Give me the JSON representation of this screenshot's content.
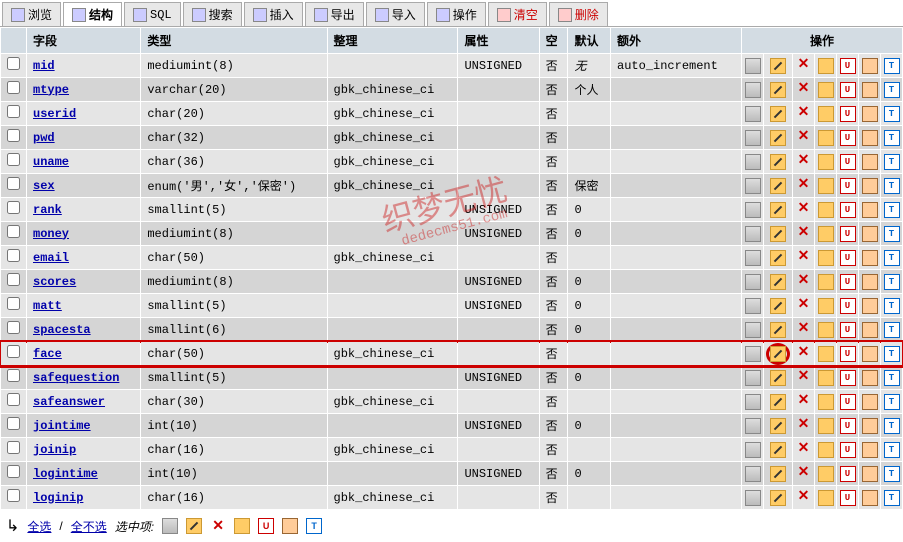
{
  "tabs": [
    {
      "label": "浏览",
      "active": false,
      "danger": false
    },
    {
      "label": "结构",
      "active": true,
      "danger": false
    },
    {
      "label": "SQL",
      "active": false,
      "danger": false
    },
    {
      "label": "搜索",
      "active": false,
      "danger": false
    },
    {
      "label": "插入",
      "active": false,
      "danger": false
    },
    {
      "label": "导出",
      "active": false,
      "danger": false
    },
    {
      "label": "导入",
      "active": false,
      "danger": false
    },
    {
      "label": "操作",
      "active": false,
      "danger": false
    },
    {
      "label": "清空",
      "active": false,
      "danger": true
    },
    {
      "label": "删除",
      "active": false,
      "danger": true
    }
  ],
  "headers": {
    "field": "字段",
    "type": "类型",
    "collation": "整理",
    "attributes": "属性",
    "null": "空",
    "default": "默认",
    "extra": "额外",
    "action": "操作"
  },
  "rows": [
    {
      "field": "mid",
      "type": "mediumint(8)",
      "collation": "",
      "attr": "UNSIGNED",
      "null": "否",
      "default": "无",
      "extra": "auto_increment",
      "hl": false
    },
    {
      "field": "mtype",
      "type": "varchar(20)",
      "collation": "gbk_chinese_ci",
      "attr": "",
      "null": "否",
      "default": "个人",
      "extra": "",
      "hl": false
    },
    {
      "field": "userid",
      "type": "char(20)",
      "collation": "gbk_chinese_ci",
      "attr": "",
      "null": "否",
      "default": "",
      "extra": "",
      "hl": false
    },
    {
      "field": "pwd",
      "type": "char(32)",
      "collation": "gbk_chinese_ci",
      "attr": "",
      "null": "否",
      "default": "",
      "extra": "",
      "hl": false
    },
    {
      "field": "uname",
      "type": "char(36)",
      "collation": "gbk_chinese_ci",
      "attr": "",
      "null": "否",
      "default": "",
      "extra": "",
      "hl": false
    },
    {
      "field": "sex",
      "type": "enum('男','女','保密')",
      "collation": "gbk_chinese_ci",
      "attr": "",
      "null": "否",
      "default": "保密",
      "extra": "",
      "hl": false
    },
    {
      "field": "rank",
      "type": "smallint(5)",
      "collation": "",
      "attr": "UNSIGNED",
      "null": "否",
      "default": "0",
      "extra": "",
      "hl": false
    },
    {
      "field": "money",
      "type": "mediumint(8)",
      "collation": "",
      "attr": "UNSIGNED",
      "null": "否",
      "default": "0",
      "extra": "",
      "hl": false
    },
    {
      "field": "email",
      "type": "char(50)",
      "collation": "gbk_chinese_ci",
      "attr": "",
      "null": "否",
      "default": "",
      "extra": "",
      "hl": false
    },
    {
      "field": "scores",
      "type": "mediumint(8)",
      "collation": "",
      "attr": "UNSIGNED",
      "null": "否",
      "default": "0",
      "extra": "",
      "hl": false
    },
    {
      "field": "matt",
      "type": "smallint(5)",
      "collation": "",
      "attr": "UNSIGNED",
      "null": "否",
      "default": "0",
      "extra": "",
      "hl": false
    },
    {
      "field": "spacesta",
      "type": "smallint(6)",
      "collation": "",
      "attr": "",
      "null": "否",
      "default": "0",
      "extra": "",
      "hl": false
    },
    {
      "field": "face",
      "type": "char(50)",
      "collation": "gbk_chinese_ci",
      "attr": "",
      "null": "否",
      "default": "",
      "extra": "",
      "hl": true
    },
    {
      "field": "safequestion",
      "type": "smallint(5)",
      "collation": "",
      "attr": "UNSIGNED",
      "null": "否",
      "default": "0",
      "extra": "",
      "hl": false
    },
    {
      "field": "safeanswer",
      "type": "char(30)",
      "collation": "gbk_chinese_ci",
      "attr": "",
      "null": "否",
      "default": "",
      "extra": "",
      "hl": false
    },
    {
      "field": "jointime",
      "type": "int(10)",
      "collation": "",
      "attr": "UNSIGNED",
      "null": "否",
      "default": "0",
      "extra": "",
      "hl": false
    },
    {
      "field": "joinip",
      "type": "char(16)",
      "collation": "gbk_chinese_ci",
      "attr": "",
      "null": "否",
      "default": "",
      "extra": "",
      "hl": false
    },
    {
      "field": "logintime",
      "type": "int(10)",
      "collation": "",
      "attr": "UNSIGNED",
      "null": "否",
      "default": "0",
      "extra": "",
      "hl": false
    },
    {
      "field": "loginip",
      "type": "char(16)",
      "collation": "gbk_chinese_ci",
      "attr": "",
      "null": "否",
      "default": "",
      "extra": "",
      "hl": false
    }
  ],
  "footer": {
    "check_all": "全选",
    "uncheck_all": "全不选",
    "with_selected": "选中项:"
  },
  "watermark": "织梦无忧",
  "watermark_url": "dedecms51.com",
  "italic_default": "无"
}
